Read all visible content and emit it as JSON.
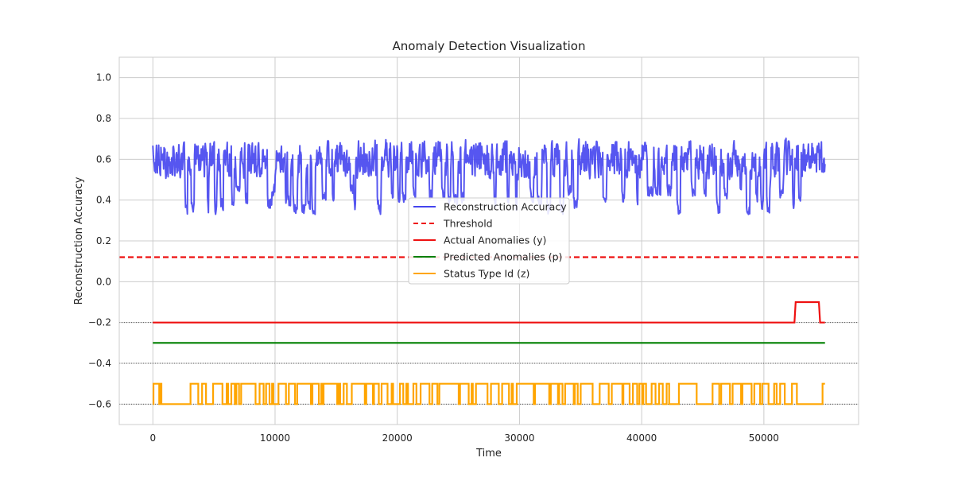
{
  "chart_data": {
    "type": "line",
    "title": "Anomaly Detection Visualization",
    "xlabel": "Time",
    "ylabel": "Reconstruction Accuracy",
    "xlim": [
      -2750,
      57750
    ],
    "ylim": [
      -0.7,
      1.1
    ],
    "xticks": [
      0,
      10000,
      20000,
      30000,
      40000,
      50000
    ],
    "yticks": [
      1.0,
      0.8,
      0.6,
      0.4,
      0.2,
      0.0,
      -0.2,
      -0.4,
      -0.6
    ],
    "ytick_labels": [
      "1.0",
      "0.8",
      "0.6",
      "0.4",
      "0.2",
      "0.0",
      "−0.2",
      "−0.4",
      "−0.6"
    ],
    "grid": true,
    "legend_position": "center",
    "reference_lines": [
      {
        "y": -0.2,
        "style": "dotted",
        "color": "#555555"
      },
      {
        "y": -0.4,
        "style": "dotted",
        "color": "#555555"
      },
      {
        "y": -0.6,
        "style": "dotted",
        "color": "#555555"
      }
    ],
    "series": [
      {
        "name": "Reconstruction Accuracy",
        "color": "#4444ee",
        "style": "solid",
        "kind": "noisy_band",
        "x_range": [
          0,
          55000
        ],
        "approx_range": [
          0.33,
          0.75
        ],
        "typical_level": 0.6
      },
      {
        "name": "Threshold",
        "color": "#ee1111",
        "style": "dashed",
        "x": [
          -2750,
          57750
        ],
        "y": [
          0.12,
          0.12
        ]
      },
      {
        "name": "Actual Anomalies (y)",
        "color": "#ee1111",
        "style": "solid",
        "x": [
          0,
          52500,
          52600,
          54500,
          54600,
          55000
        ],
        "y": [
          -0.2,
          -0.2,
          -0.1,
          -0.1,
          -0.2,
          -0.2
        ]
      },
      {
        "name": "Predicted Anomalies (p)",
        "color": "#008000",
        "style": "solid",
        "x": [
          0,
          55000
        ],
        "y": [
          -0.3,
          -0.3
        ]
      },
      {
        "name": "Status Type Id (z)",
        "color": "#ffa500",
        "style": "solid",
        "kind": "binary_toggle",
        "levels": [
          -0.6,
          -0.5
        ],
        "low_intervals": [
          [
            0,
            50
          ],
          [
            700,
            2800
          ],
          [
            44500,
            45800
          ],
          [
            52700,
            54800
          ]
        ]
      }
    ]
  }
}
